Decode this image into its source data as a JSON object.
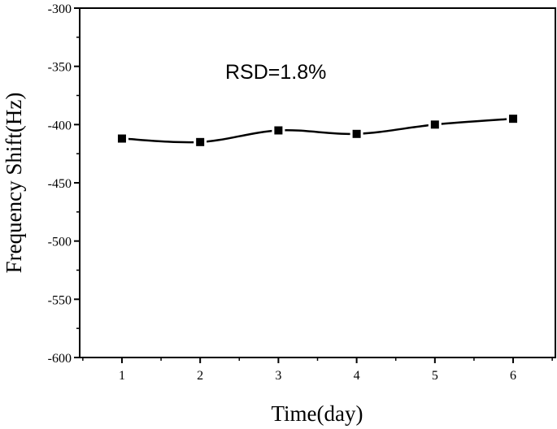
{
  "chart_data": {
    "type": "line",
    "title": "",
    "xlabel": "Time(day)",
    "ylabel": "Frequency Shift(Hz)",
    "x": [
      1,
      2,
      3,
      4,
      5,
      6
    ],
    "series": [
      {
        "name": "Frequency Shift",
        "values": [
          -412,
          -415,
          -405,
          -408,
          -400,
          -395
        ],
        "color": "#000000",
        "marker": "square",
        "smooth": true
      }
    ],
    "xlim": [
      0.46,
      6.54
    ],
    "ylim": [
      -600,
      -300
    ],
    "xticks": [
      "1",
      "2",
      "3",
      "4",
      "5",
      "6"
    ],
    "yticks": [
      "-300",
      "-350",
      "-400",
      "-450",
      "-500",
      "-550",
      "-600"
    ],
    "grid": false,
    "annotation": "RSD=1.8%"
  }
}
